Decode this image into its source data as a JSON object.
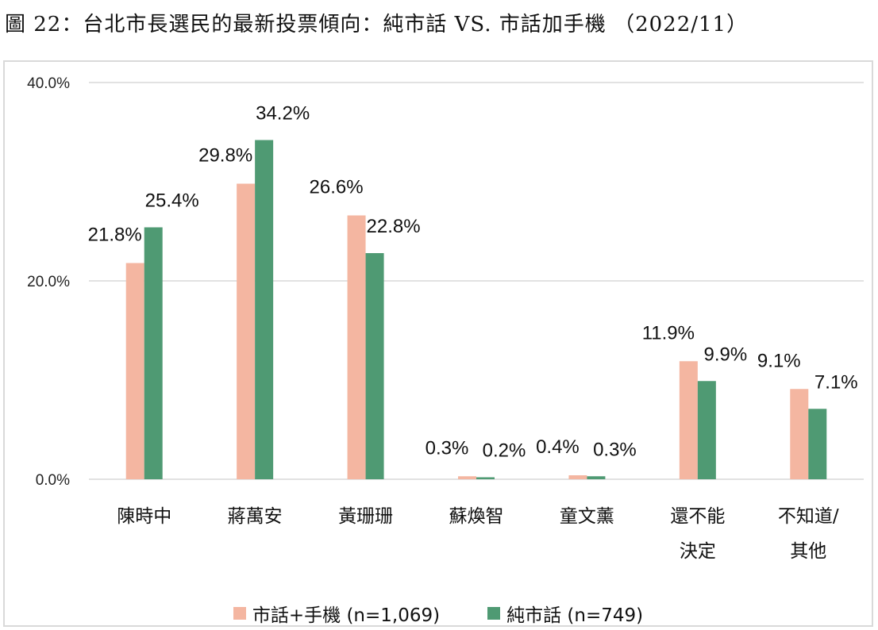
{
  "figure_title": "圖 22：台北市長選民的最新投票傾向：純市話 VS. 市話加手機 （2022/11）",
  "chart_data": {
    "type": "bar",
    "title": "",
    "xlabel": "",
    "ylabel": "",
    "ylim": [
      0,
      40
    ],
    "y_ticks": [
      "0.0%",
      "20.0%",
      "40.0%"
    ],
    "y_tick_values": [
      0,
      20,
      40
    ],
    "grid": true,
    "legend_position": "bottom",
    "categories": [
      [
        "陳時中"
      ],
      [
        "蔣萬安"
      ],
      [
        "黃珊珊"
      ],
      [
        "蘇煥智"
      ],
      [
        "童文薰"
      ],
      [
        "還不能",
        "決定"
      ],
      [
        "不知道/",
        "其他"
      ]
    ],
    "series": [
      {
        "name": "市話+手機 (n=1,069)",
        "color": "#f4b6a1",
        "values": [
          21.8,
          29.8,
          26.6,
          0.3,
          0.4,
          11.9,
          9.1
        ],
        "labels": [
          "21.8%",
          "29.8%",
          "26.6%",
          "0.3%",
          "0.4%",
          "11.9%",
          "9.1%"
        ]
      },
      {
        "name": "純市話 (n=749)",
        "color": "#4f9a73",
        "values": [
          25.4,
          34.2,
          22.8,
          0.2,
          0.3,
          9.9,
          7.1
        ],
        "labels": [
          "25.4%",
          "34.2%",
          "22.8%",
          "0.2%",
          "0.3%",
          "9.9%",
          "7.1%"
        ]
      }
    ]
  }
}
